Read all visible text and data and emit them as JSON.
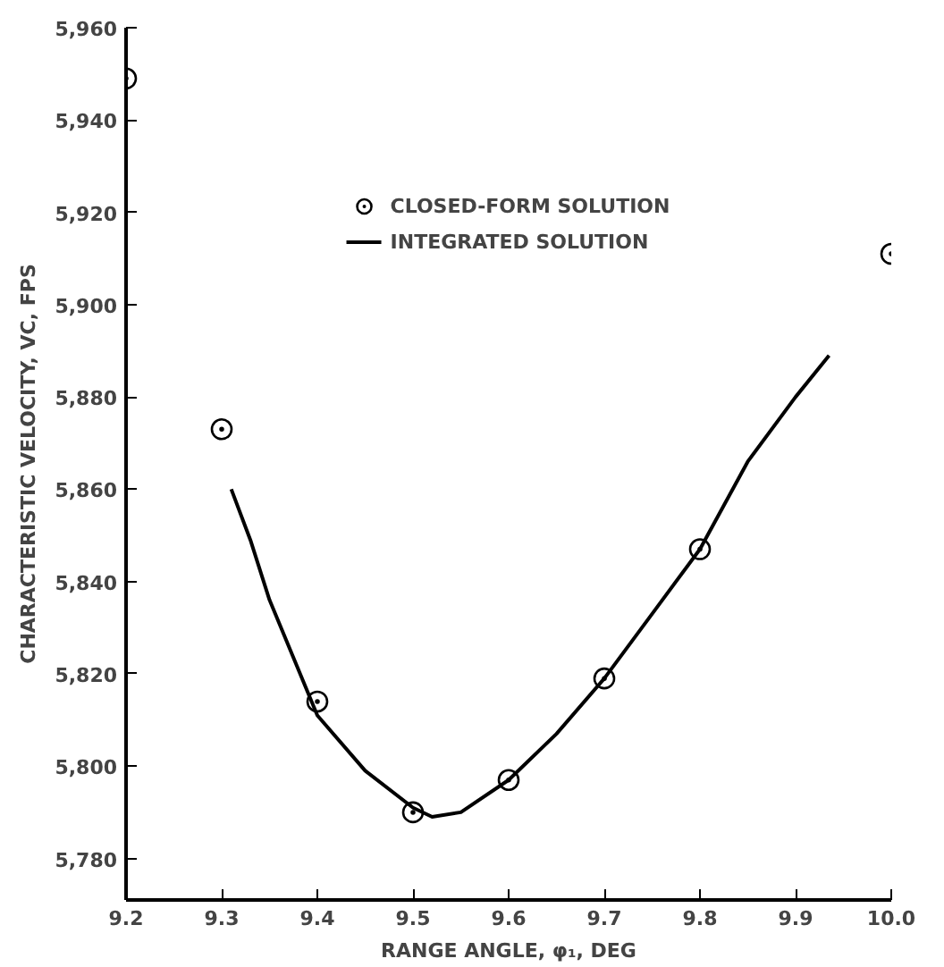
{
  "chart_data": {
    "type": "line",
    "xlabel": "RANGE ANGLE, φ₁, DEG",
    "ylabel": "CHARACTERISTIC VELOCITY, VC, FPS",
    "xlim": [
      9.2,
      10.0
    ],
    "ylim": [
      5771,
      5960
    ],
    "xticks": [
      9.2,
      9.3,
      9.4,
      9.5,
      9.6,
      9.7,
      9.8,
      9.9,
      {
        "value": 10.0,
        "label": "10.0"
      }
    ],
    "yticks": [
      {
        "value": 5780,
        "label": "5,780"
      },
      {
        "value": 5800,
        "label": "5,800"
      },
      {
        "value": 5820,
        "label": "5,820"
      },
      {
        "value": 5840,
        "label": "5,840"
      },
      {
        "value": 5860,
        "label": "5,860"
      },
      {
        "value": 5880,
        "label": "5,880"
      },
      {
        "value": 5900,
        "label": "5,900"
      },
      {
        "value": 5920,
        "label": "5,920"
      },
      {
        "value": 5940,
        "label": "5,940"
      },
      {
        "value": 5960,
        "label": "5,960"
      }
    ],
    "grid": false,
    "legend": "top",
    "series": [
      {
        "name": "CLOSED-FORM SOLUTION",
        "type": "scatter",
        "marker": "circle",
        "color": "#000000",
        "x": [
          9.2,
          9.3,
          9.4,
          9.5,
          9.6,
          9.7,
          9.8,
          10.0
        ],
        "values": [
          5949,
          5873,
          5814,
          5790,
          5797,
          5819,
          5847,
          5911
        ]
      },
      {
        "name": "INTEGRATED SOLUTION",
        "marker": "none",
        "line_style": "solid",
        "color": "#000000",
        "x": [
          9.31,
          9.33,
          9.35,
          9.4,
          9.45,
          9.5,
          9.52,
          9.55,
          9.6,
          9.65,
          9.7,
          9.75,
          9.8,
          9.85,
          9.9,
          9.935
        ],
        "values": [
          5860,
          5849,
          5836,
          5811,
          5799,
          5791,
          5789,
          5790,
          5797,
          5807,
          5819,
          5833,
          5847,
          5866,
          5880,
          5889
        ]
      }
    ]
  }
}
